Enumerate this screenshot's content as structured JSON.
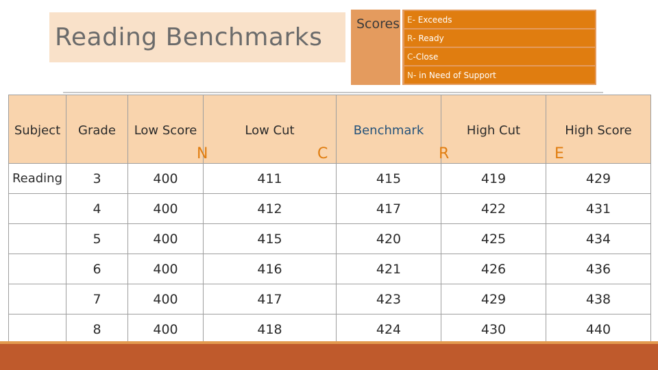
{
  "title": "Reading Benchmarks",
  "scores": {
    "label": "Scores",
    "legend": [
      {
        "code": "E",
        "text": "- Exceeds"
      },
      {
        "code": "R",
        "text": "- Ready"
      },
      {
        "code": "C",
        "text": "-Close"
      },
      {
        "code": "N",
        "text": "- in Need of Support"
      }
    ]
  },
  "table": {
    "headers": [
      "Subject",
      "Grade",
      "Low Score",
      "Low Cut",
      "Benchmark",
      "High Cut",
      "High Score"
    ],
    "markers": [
      "N",
      "C",
      "R",
      "E"
    ],
    "rows": [
      [
        "Reading",
        "3",
        "400",
        "411",
        "415",
        "419",
        "429"
      ],
      [
        "",
        "4",
        "400",
        "412",
        "417",
        "422",
        "431"
      ],
      [
        "",
        "5",
        "400",
        "415",
        "420",
        "425",
        "434"
      ],
      [
        "",
        "6",
        "400",
        "416",
        "421",
        "426",
        "436"
      ],
      [
        "",
        "7",
        "400",
        "417",
        "423",
        "429",
        "438"
      ],
      [
        "",
        "8",
        "400",
        "418",
        "424",
        "430",
        "440"
      ]
    ]
  },
  "colors": {
    "accent_orange": "#e07d10",
    "header_fill": "#f9d4ad",
    "band": "#bf5a2c"
  }
}
